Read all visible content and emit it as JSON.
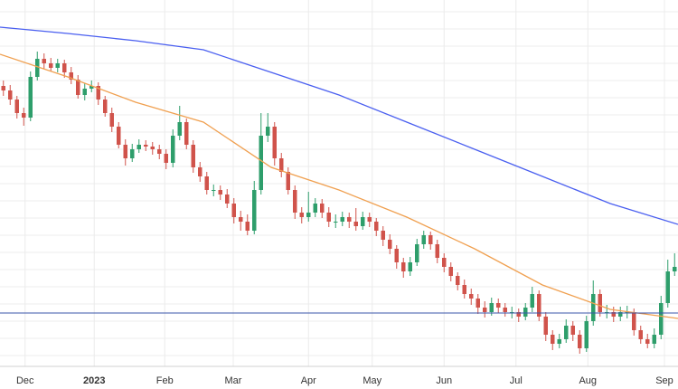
{
  "chart_data": {
    "type": "candlestick",
    "up_color": "#2e9e6b",
    "down_color": "#d0534b",
    "xlim": [
      0,
      100
    ],
    "ylim": [
      0,
      405
    ],
    "xticks": [
      {
        "value": 3.7,
        "label": "Dec"
      },
      {
        "value": 13.9,
        "label": "2023"
      },
      {
        "value": 24.3,
        "label": "Feb"
      },
      {
        "value": 34.4,
        "label": "Mar"
      },
      {
        "value": 45.5,
        "label": "Apr"
      },
      {
        "value": 54.9,
        "label": "May"
      },
      {
        "value": 65.5,
        "label": "Jun"
      },
      {
        "value": 76.1,
        "label": "Jul"
      },
      {
        "value": 86.7,
        "label": "Aug"
      },
      {
        "value": 98,
        "label": "Sep"
      }
    ],
    "grid_y": [
      12,
      31,
      50,
      69,
      88,
      107,
      126,
      145,
      164,
      183,
      202,
      221,
      240,
      259,
      278,
      297,
      316,
      335,
      354,
      373,
      392
    ],
    "open": [
      310,
      305,
      295,
      280,
      275,
      320,
      340,
      335,
      330,
      335,
      325,
      317,
      300,
      307,
      310,
      295,
      280,
      265,
      245,
      230,
      240,
      245,
      243,
      240,
      235,
      225,
      255,
      270,
      245,
      220,
      210,
      195,
      195,
      190,
      180,
      165,
      160,
      150,
      195,
      255,
      265,
      230,
      215,
      195,
      170,
      165,
      170,
      180,
      170,
      160,
      160,
      165,
      160,
      155,
      165,
      160,
      150,
      140,
      130,
      115,
      105,
      115,
      135,
      145,
      135,
      120,
      110,
      100,
      90,
      80,
      75,
      65,
      60,
      70,
      65,
      60,
      60,
      55,
      65,
      80,
      55,
      35,
      25,
      30,
      45,
      35,
      20,
      50,
      80,
      60,
      60,
      55,
      60,
      60,
      40,
      30,
      25,
      35,
      70,
      105
    ],
    "high": [
      316,
      311,
      299,
      286,
      326,
      348,
      346,
      341,
      340,
      339,
      331,
      322,
      313,
      316,
      314,
      299,
      286,
      270,
      251,
      246,
      251,
      250,
      248,
      245,
      240,
      262,
      288,
      274,
      250,
      226,
      215,
      201,
      200,
      196,
      186,
      172,
      168,
      205,
      280,
      280,
      270,
      236,
      220,
      200,
      176,
      193,
      186,
      185,
      176,
      168,
      171,
      170,
      175,
      171,
      170,
      164,
      155,
      146,
      134,
      120,
      121,
      141,
      150,
      149,
      140,
      125,
      115,
      104,
      96,
      86,
      80,
      72,
      76,
      75,
      70,
      66,
      64,
      70,
      88,
      84,
      60,
      40,
      36,
      52,
      50,
      40,
      56,
      95,
      85,
      68,
      66,
      66,
      67,
      64,
      45,
      36,
      42,
      78,
      118,
      125
    ],
    "low": [
      299,
      289,
      274,
      266,
      271,
      316,
      329,
      326,
      325,
      319,
      312,
      296,
      294,
      303,
      289,
      276,
      259,
      241,
      222,
      226,
      236,
      238,
      234,
      229,
      218,
      220,
      250,
      240,
      214,
      204,
      190,
      188,
      184,
      175,
      158,
      150,
      145,
      146,
      190,
      248,
      222,
      209,
      190,
      163,
      158,
      160,
      165,
      164,
      154,
      153,
      155,
      153,
      150,
      151,
      154,
      144,
      133,
      124,
      108,
      98,
      100,
      111,
      130,
      129,
      114,
      104,
      94,
      84,
      75,
      68,
      58,
      54,
      56,
      59,
      55,
      53,
      49,
      51,
      60,
      50,
      28,
      18,
      20,
      26,
      28,
      14,
      16,
      45,
      55,
      53,
      49,
      50,
      53,
      34,
      25,
      20,
      20,
      30,
      65,
      100
    ],
    "close": [
      305,
      295,
      280,
      275,
      320,
      340,
      335,
      330,
      335,
      325,
      317,
      300,
      307,
      310,
      295,
      280,
      265,
      245,
      230,
      240,
      245,
      243,
      240,
      235,
      225,
      255,
      270,
      245,
      220,
      210,
      195,
      195,
      190,
      180,
      165,
      160,
      150,
      195,
      255,
      265,
      230,
      215,
      195,
      170,
      165,
      170,
      180,
      170,
      160,
      160,
      165,
      160,
      155,
      165,
      160,
      150,
      140,
      130,
      115,
      105,
      115,
      135,
      145,
      135,
      120,
      110,
      100,
      90,
      80,
      75,
      65,
      60,
      70,
      65,
      60,
      60,
      55,
      65,
      80,
      55,
      35,
      25,
      30,
      45,
      35,
      20,
      50,
      80,
      60,
      60,
      55,
      60,
      60,
      40,
      30,
      25,
      35,
      70,
      105,
      110
    ],
    "lines": [
      {
        "color": "#f0a050",
        "x": [
          0,
          10,
          20,
          30,
          40,
          50,
          60,
          70,
          80,
          90,
          100
        ],
        "values": [
          345,
          320,
          292,
          270,
          220,
          195,
          165,
          130,
          90,
          63,
          53
        ]
      },
      {
        "color": "#4a5ff0",
        "x": [
          0,
          10,
          20,
          30,
          40,
          50,
          60,
          70,
          80,
          90,
          100
        ],
        "values": [
          375,
          368,
          360,
          350,
          325,
          300,
          270,
          240,
          210,
          180,
          157
        ]
      }
    ],
    "hline": {
      "value": 59,
      "color": "#3a55a8"
    }
  }
}
